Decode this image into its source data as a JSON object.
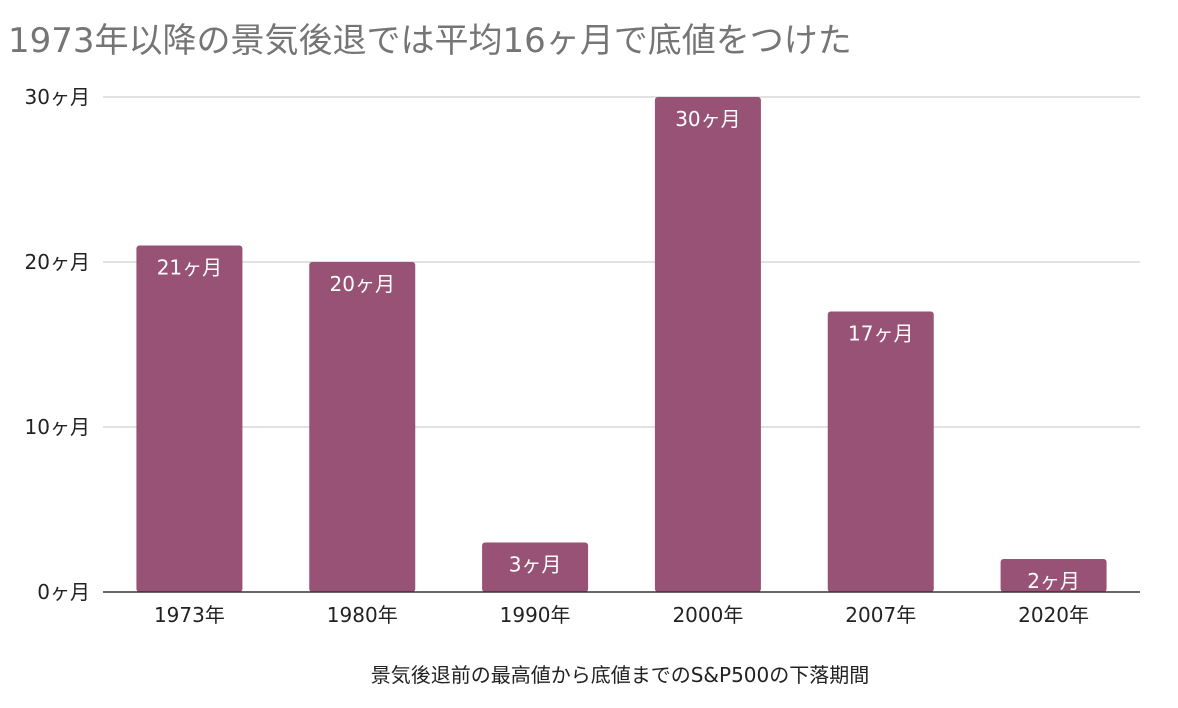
{
  "chart_data": {
    "type": "bar",
    "title": "1973年以降の景気後退では平均16ヶ月で底値をつけた",
    "xlabel": "景気後退前の最高値から底値までのS&P500の下落期間",
    "ylabel": "",
    "categories": [
      "1973年",
      "1980年",
      "1990年",
      "2000年",
      "2007年",
      "2020年"
    ],
    "values": [
      21,
      20,
      3,
      30,
      17,
      2
    ],
    "value_labels": [
      "21ヶ月",
      "20ヶ月",
      "3ヶ月",
      "30ヶ月",
      "17ヶ月",
      "2ヶ月"
    ],
    "ylim": [
      0,
      30
    ],
    "yticks": [
      0,
      10,
      20,
      30
    ],
    "ytick_labels": [
      "0ヶ月",
      "10ヶ月",
      "20ヶ月",
      "30ヶ月"
    ],
    "grid": true,
    "legend": "none",
    "bar_color": "#985275"
  }
}
